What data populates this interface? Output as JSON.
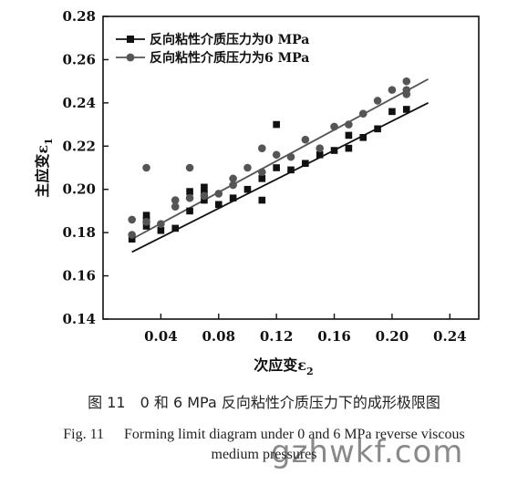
{
  "chart_data": {
    "type": "scatter",
    "xlabel": "次应变ε",
    "xlabel_sub": "2",
    "ylabel": "主应变ε",
    "ylabel_sub": "1",
    "xlim": [
      0.0,
      0.26
    ],
    "ylim": [
      0.14,
      0.28
    ],
    "x_ticks": [
      "0.04",
      "0.08",
      "0.12",
      "0.16",
      "0.20",
      "0.24"
    ],
    "y_ticks": [
      "0.14",
      "0.16",
      "0.18",
      "0.20",
      "0.22",
      "0.24",
      "0.26",
      "0.28"
    ],
    "legend_position": "top-left",
    "series": [
      {
        "name": "反向粘性介质压力为0 MPa",
        "marker": "square",
        "color": "#111111",
        "points": [
          [
            0.02,
            0.177
          ],
          [
            0.03,
            0.183
          ],
          [
            0.03,
            0.186
          ],
          [
            0.03,
            0.188
          ],
          [
            0.04,
            0.181
          ],
          [
            0.05,
            0.182
          ],
          [
            0.06,
            0.19
          ],
          [
            0.06,
            0.199
          ],
          [
            0.07,
            0.195
          ],
          [
            0.07,
            0.198
          ],
          [
            0.07,
            0.201
          ],
          [
            0.08,
            0.193
          ],
          [
            0.09,
            0.196
          ],
          [
            0.1,
            0.2
          ],
          [
            0.11,
            0.195
          ],
          [
            0.11,
            0.205
          ],
          [
            0.12,
            0.21
          ],
          [
            0.12,
            0.23
          ],
          [
            0.13,
            0.209
          ],
          [
            0.14,
            0.212
          ],
          [
            0.15,
            0.216
          ],
          [
            0.16,
            0.218
          ],
          [
            0.17,
            0.219
          ],
          [
            0.17,
            0.225
          ],
          [
            0.18,
            0.224
          ],
          [
            0.19,
            0.228
          ],
          [
            0.2,
            0.236
          ],
          [
            0.21,
            0.237
          ]
        ],
        "fit_line": [
          [
            0.02,
            0.171
          ],
          [
            0.225,
            0.24
          ]
        ]
      },
      {
        "name": "反向粘性介质压力为6 MPa",
        "marker": "circle",
        "color": "#555555",
        "points": [
          [
            0.02,
            0.179
          ],
          [
            0.02,
            0.186
          ],
          [
            0.03,
            0.185
          ],
          [
            0.03,
            0.21
          ],
          [
            0.04,
            0.184
          ],
          [
            0.05,
            0.192
          ],
          [
            0.05,
            0.195
          ],
          [
            0.06,
            0.196
          ],
          [
            0.06,
            0.21
          ],
          [
            0.07,
            0.197
          ],
          [
            0.08,
            0.198
          ],
          [
            0.09,
            0.202
          ],
          [
            0.09,
            0.205
          ],
          [
            0.1,
            0.21
          ],
          [
            0.11,
            0.208
          ],
          [
            0.11,
            0.219
          ],
          [
            0.12,
            0.216
          ],
          [
            0.13,
            0.215
          ],
          [
            0.14,
            0.223
          ],
          [
            0.15,
            0.219
          ],
          [
            0.16,
            0.229
          ],
          [
            0.17,
            0.23
          ],
          [
            0.18,
            0.235
          ],
          [
            0.19,
            0.241
          ],
          [
            0.2,
            0.246
          ],
          [
            0.21,
            0.244
          ],
          [
            0.21,
            0.246
          ],
          [
            0.21,
            0.25
          ]
        ],
        "fit_line": [
          [
            0.02,
            0.177
          ],
          [
            0.225,
            0.251
          ]
        ]
      }
    ]
  },
  "caption": {
    "cn": "图 11　0 和 6 MPa 反向粘性介质压力下的成形极限图",
    "en_label": "Fig. 11",
    "en_line1": "Forming limit diagram under 0 and 6 MPa reverse viscous",
    "en_line2": "medium pressures"
  },
  "watermark": "gzhwkf.com"
}
